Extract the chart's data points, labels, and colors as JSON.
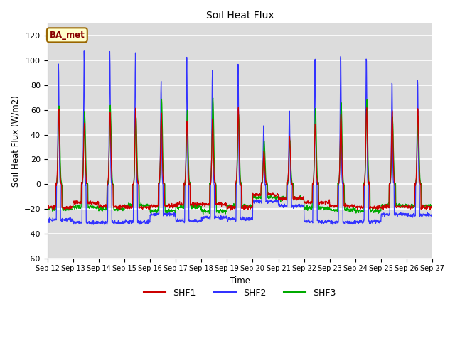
{
  "title": "Soil Heat Flux",
  "ylabel": "Soil Heat Flux (W/m2)",
  "xlabel": "Time",
  "ylim": [
    -60,
    130
  ],
  "yticks": [
    -60,
    -40,
    -20,
    0,
    20,
    40,
    60,
    80,
    100,
    120
  ],
  "fig_bg_color": "#ffffff",
  "plot_bg_color": "#dcdcdc",
  "shf1_color": "#cc0000",
  "shf2_color": "#3333ff",
  "shf3_color": "#00aa00",
  "legend_label1": "SHF1",
  "legend_label2": "SHF2",
  "legend_label3": "SHF3",
  "annotation_text": "BA_met",
  "annotation_bg": "#ffffcc",
  "annotation_border": "#996600",
  "n_days": 15,
  "pts_per_day": 96,
  "start_day": 12,
  "figsize": [
    6.4,
    4.8
  ],
  "dpi": 100
}
